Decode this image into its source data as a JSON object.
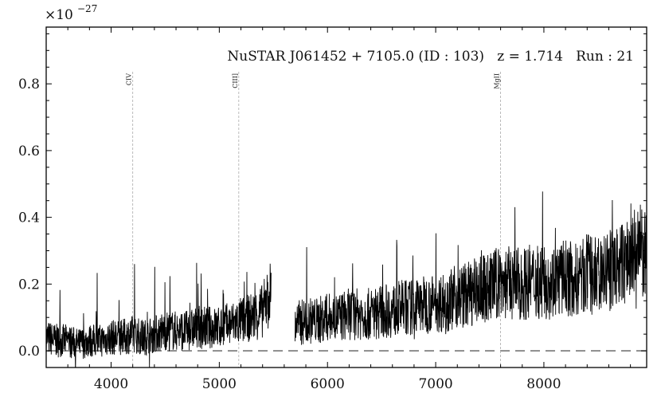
{
  "chart_data": {
    "type": "line",
    "title": "NuSTAR J061452 + 7105.0 (ID : 103)   z = 1.714   Run : 21",
    "xlabel": "",
    "ylabel": "",
    "y_scale_label": "×10",
    "y_scale_exponent": "−27",
    "xlim": [
      3400,
      8950
    ],
    "ylim": [
      -0.05,
      0.97
    ],
    "x_ticks": [
      4000,
      5000,
      6000,
      7000,
      8000
    ],
    "x_tick_labels": [
      "4000",
      "5000",
      "6000",
      "7000",
      "8000"
    ],
    "y_ticks": [
      0.0,
      0.2,
      0.4,
      0.6,
      0.8
    ],
    "y_tick_labels": [
      "0.0",
      "0.2",
      "0.4",
      "0.6",
      "0.8"
    ],
    "emission_lines": [
      {
        "name": "CIV",
        "x": 4200
      },
      {
        "name": "CIII]",
        "x": 5180
      },
      {
        "name": "MgII",
        "x": 7600
      }
    ],
    "zero_line": {
      "y": 0.0,
      "style": "dashed"
    },
    "gap": [
      5500,
      5700
    ],
    "series": [
      {
        "x": [
          3400,
          3500,
          3600,
          3700,
          3800,
          3900,
          4000,
          4100,
          4200,
          4300,
          4400,
          4500,
          4600,
          4700,
          4800,
          4900,
          5000,
          5100,
          5200,
          5300,
          5400,
          5480,
          5700,
          5800,
          5900,
          6000,
          6100,
          6200,
          6300,
          6400,
          6500,
          6600,
          6700,
          6800,
          6900,
          7000,
          7100,
          7200,
          7300,
          7400,
          7500,
          7600,
          7700,
          7800,
          7900,
          8000,
          8100,
          8200,
          8300,
          8400,
          8500,
          8600,
          8700,
          8800,
          8900,
          8950
        ],
        "values": [
          0.04,
          0.03,
          0.03,
          0.02,
          0.03,
          0.03,
          0.04,
          0.04,
          0.05,
          0.04,
          0.05,
          0.06,
          0.06,
          0.06,
          0.07,
          0.07,
          0.07,
          0.08,
          0.09,
          0.1,
          0.12,
          0.18,
          0.08,
          0.09,
          0.09,
          0.1,
          0.1,
          0.11,
          0.11,
          0.11,
          0.12,
          0.12,
          0.13,
          0.13,
          0.14,
          0.14,
          0.15,
          0.16,
          0.17,
          0.18,
          0.19,
          0.21,
          0.2,
          0.2,
          0.21,
          0.2,
          0.21,
          0.22,
          0.21,
          0.23,
          0.22,
          0.24,
          0.25,
          0.28,
          0.3,
          0.27
        ]
      }
    ],
    "grid": false
  }
}
